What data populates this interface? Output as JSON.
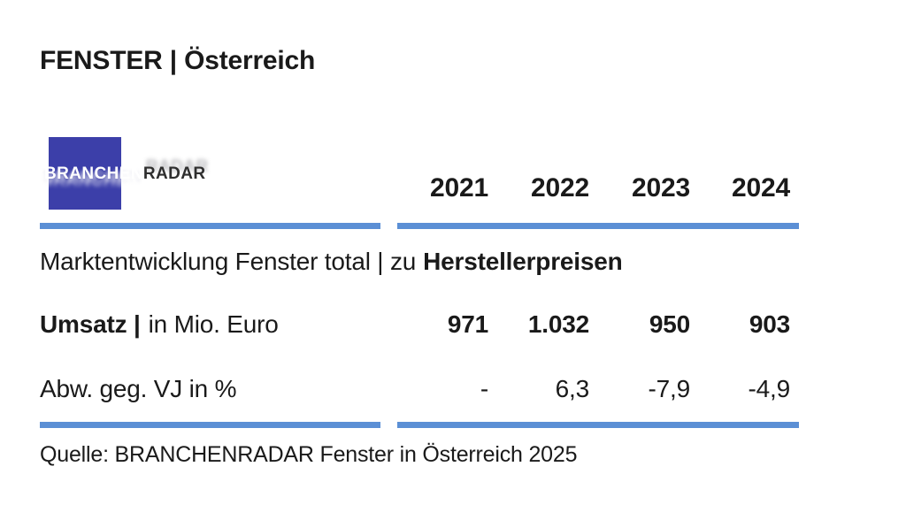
{
  "page_title": "FENSTER | Österreich",
  "logo": {
    "text_primary": "BRANCHEN",
    "text_secondary": "RADAR"
  },
  "colors": {
    "rule_blue": "#5b8fd5",
    "text": "#1a1a1a",
    "logo_blue": "#3c3fa9"
  },
  "table": {
    "years": [
      "2021",
      "2022",
      "2023",
      "2024"
    ],
    "section_title_regular": "Marktentwicklung Fenster total | zu",
    "section_title_bold": "Herstellerpreisen",
    "rows": [
      {
        "label_bold": "Umsatz |",
        "label_regular": "in Mio. Euro",
        "values": [
          "971",
          "1.032",
          "950",
          "903"
        ]
      },
      {
        "label_bold": "",
        "label_regular": "Abw. geg. VJ in %",
        "values": [
          "-",
          "6,3",
          "-7,9",
          "-4,9"
        ]
      }
    ]
  },
  "source": "Quelle: BRANCHENRADAR Fenster in Österreich 2025",
  "chart_data": {
    "type": "table",
    "title": "Marktentwicklung Fenster total | zu Herstellerpreisen",
    "categories": [
      "2021",
      "2022",
      "2023",
      "2024"
    ],
    "series": [
      {
        "name": "Umsatz | in Mio. Euro",
        "values": [
          971,
          1032,
          950,
          903
        ]
      },
      {
        "name": "Abw. geg. VJ in %",
        "values": [
          null,
          6.3,
          -7.9,
          -4.9
        ]
      }
    ],
    "source": "Quelle: BRANCHENRADAR Fenster in Österreich 2025",
    "layout": {
      "header_row": "years across top",
      "grid": "off",
      "accent_rules": "#5b8fd5"
    }
  }
}
